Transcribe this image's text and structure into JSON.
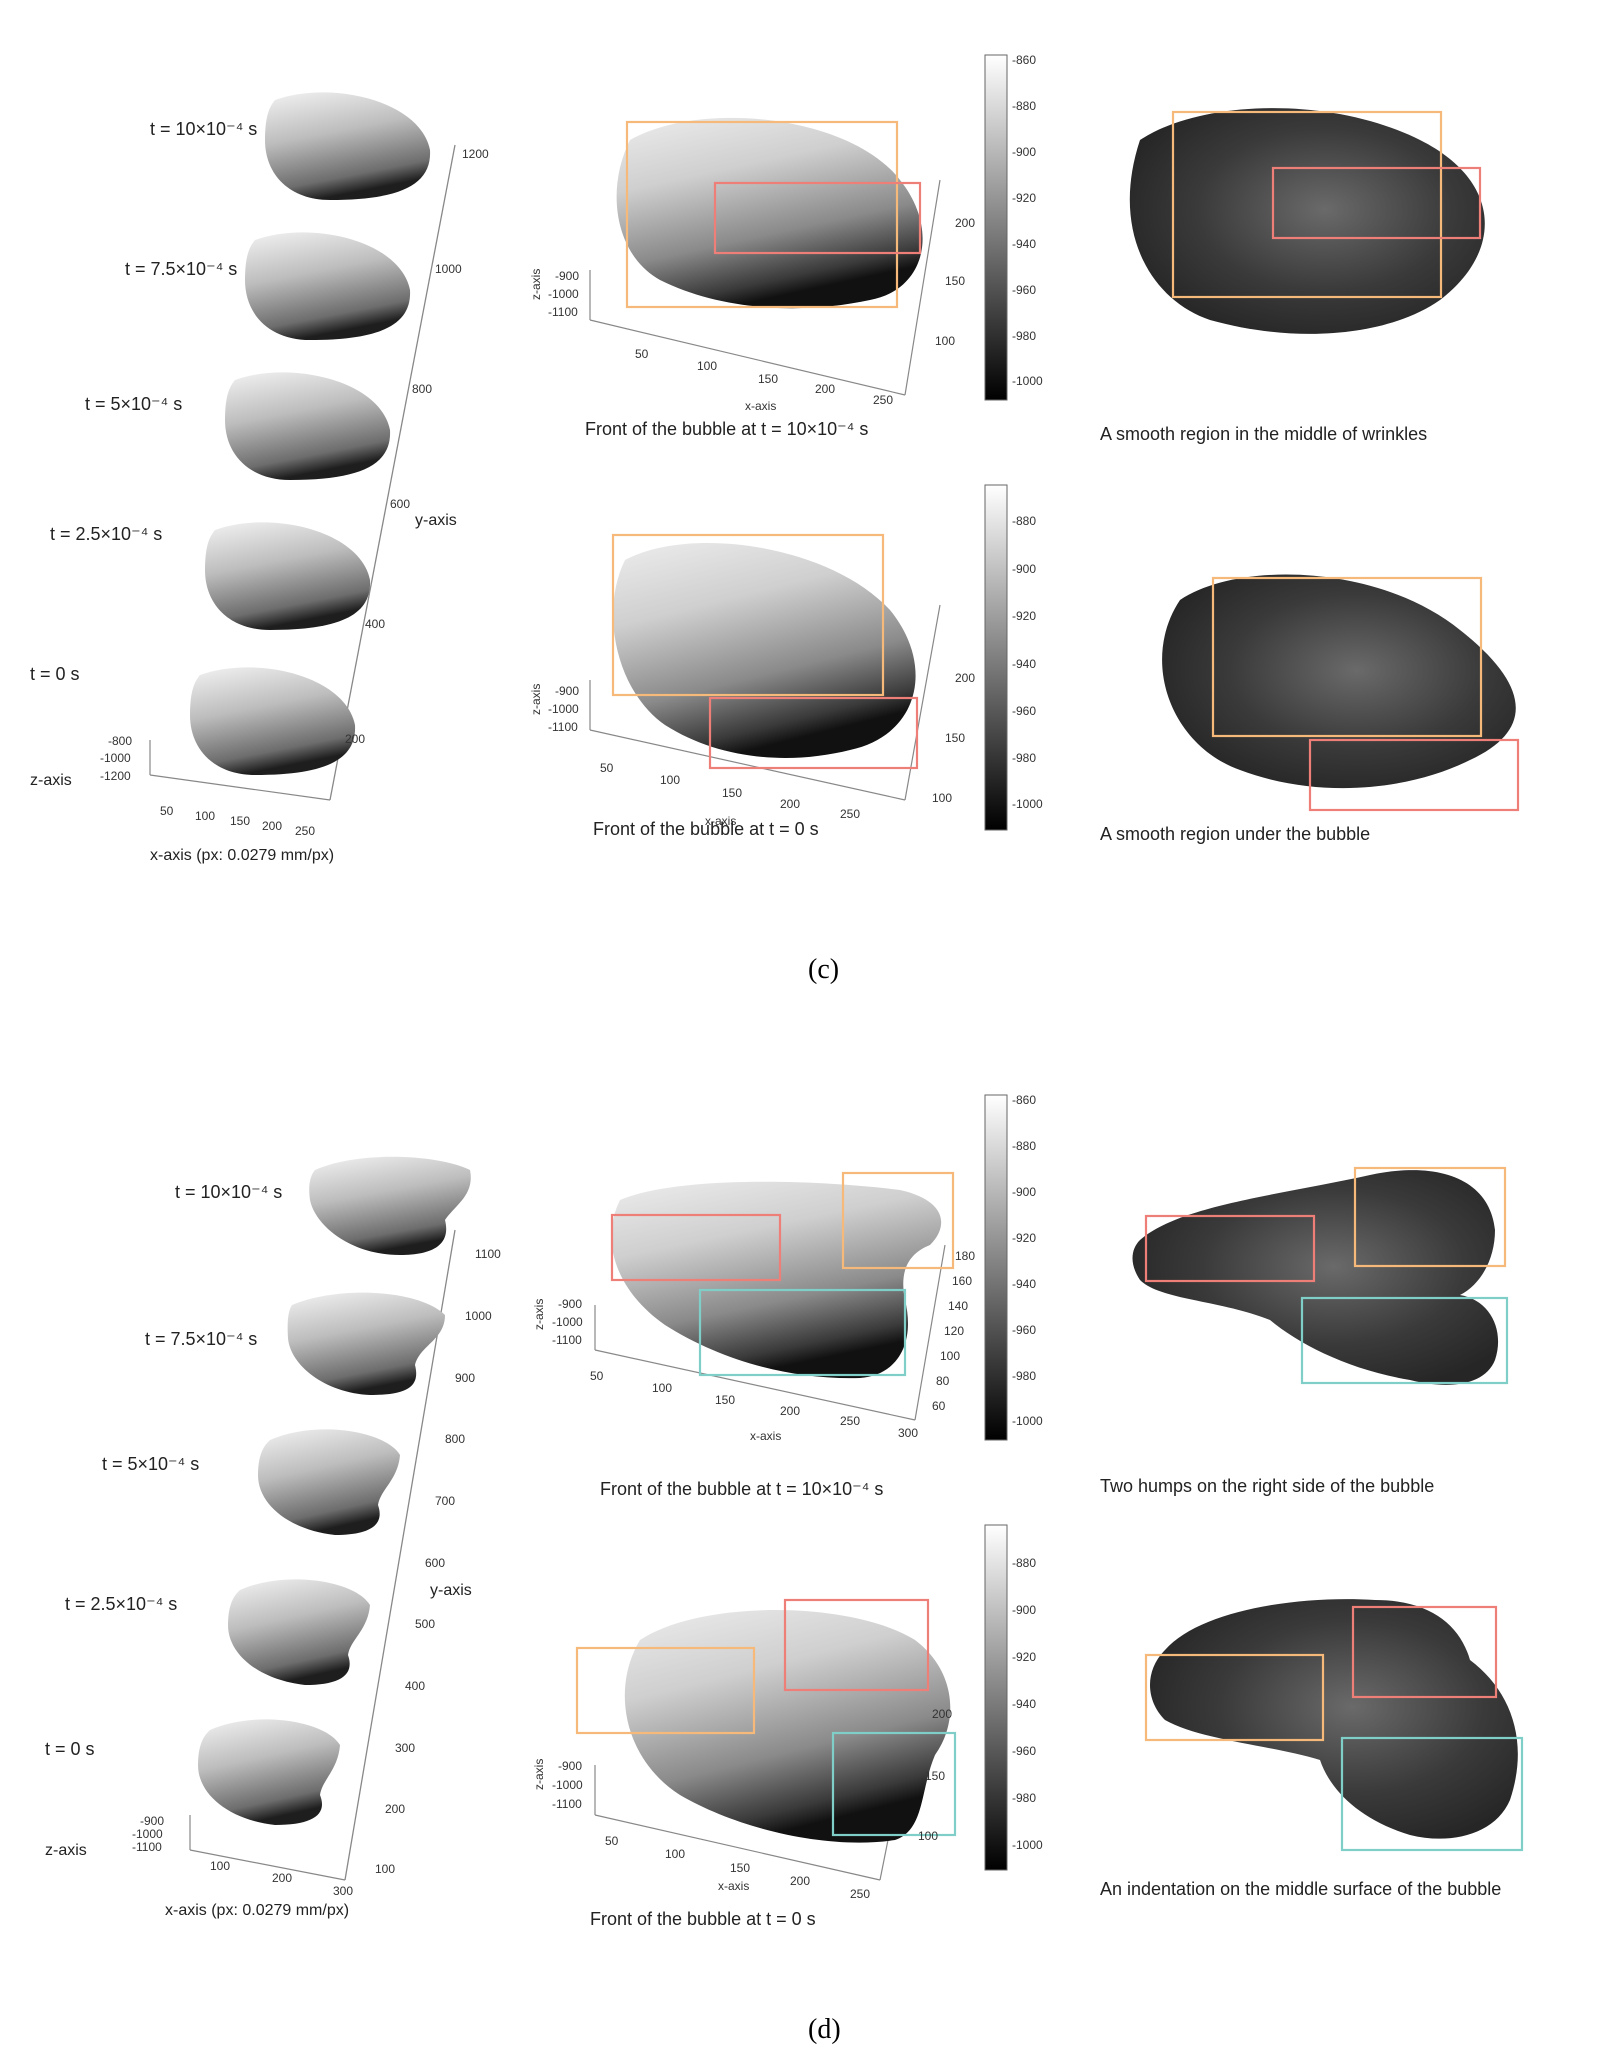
{
  "colors": {
    "orange": "#f6b97a",
    "red": "#ee7f78",
    "teal": "#7fcfc8"
  },
  "c": {
    "panel_label": "(c)",
    "time_labels": [
      "t = 10×10⁻⁴ s",
      "t = 7.5×10⁻⁴ s",
      "t = 5×10⁻⁴ s",
      "t = 2.5×10⁻⁴ s",
      "t = 0 s"
    ],
    "y_ticks": [
      "1200",
      "1000",
      "800",
      "600",
      "400",
      "200"
    ],
    "y_label": "y-axis",
    "z_ticks": [
      "-800",
      "-1000",
      "-1200"
    ],
    "z_label": "z-axis",
    "x_ticks": [
      "50",
      "100",
      "150",
      "200",
      "250"
    ],
    "x_label": "x-axis (px: 0.0279 mm/px)",
    "colorbar_top": [
      "-860",
      "-880",
      "-900",
      "-920",
      "-940",
      "-960",
      "-980",
      "-1000"
    ],
    "colorbar_bottom": [
      "-880",
      "-900",
      "-920",
      "-940",
      "-960",
      "-980",
      "-1000"
    ],
    "front_top": {
      "z_ticks": [
        "-900",
        "-1000",
        "-1100"
      ],
      "x_ticks": [
        "50",
        "100",
        "150",
        "200",
        "250"
      ],
      "y_ticks": [
        "200",
        "150",
        "100"
      ],
      "z_label": "z-axis",
      "x_label": "x-axis",
      "caption": "Front of the bubble at t = 10×10⁻⁴ s"
    },
    "front_bottom": {
      "z_ticks": [
        "-900",
        "-1000",
        "-1100"
      ],
      "x_ticks": [
        "50",
        "100",
        "150",
        "200",
        "250"
      ],
      "y_ticks": [
        "200",
        "150",
        "100"
      ],
      "z_label": "z-axis",
      "x_label": "x-axis",
      "caption": "Front of the bubble at t = 0 s"
    },
    "right_top_caption": "A smooth region in the middle of wrinkles",
    "right_bottom_caption": "A smooth region under the bubble"
  },
  "d": {
    "panel_label": "(d)",
    "time_labels": [
      "t = 10×10⁻⁴ s",
      "t = 7.5×10⁻⁴ s",
      "t = 5×10⁻⁴ s",
      "t = 2.5×10⁻⁴ s",
      "t = 0 s"
    ],
    "y_ticks": [
      "1100",
      "1000",
      "900",
      "800",
      "700",
      "600",
      "500",
      "400",
      "300",
      "200",
      "100"
    ],
    "y_label": "y-axis",
    "z_ticks": [
      "-900",
      "-1000",
      "-1100"
    ],
    "z_label": "z-axis",
    "x_ticks": [
      "100",
      "200",
      "300"
    ],
    "x_label": "x-axis (px: 0.0279 mm/px)",
    "colorbar_top": [
      "-860",
      "-880",
      "-900",
      "-920",
      "-940",
      "-960",
      "-980",
      "-1000"
    ],
    "colorbar_bottom": [
      "-880",
      "-900",
      "-920",
      "-940",
      "-960",
      "-980",
      "-1000"
    ],
    "front_top": {
      "z_ticks": [
        "-900",
        "-1000",
        "-1100"
      ],
      "x_ticks": [
        "50",
        "100",
        "150",
        "200",
        "250",
        "300"
      ],
      "y_ticks": [
        "180",
        "160",
        "140",
        "120",
        "100",
        "80",
        "60"
      ],
      "z_label": "z-axis",
      "x_label": "x-axis",
      "caption": "Front of the bubble at t = 10×10⁻⁴ s"
    },
    "front_bottom": {
      "z_ticks": [
        "-900",
        "-1000",
        "-1100"
      ],
      "x_ticks": [
        "50",
        "100",
        "150",
        "200",
        "250"
      ],
      "y_ticks": [
        "200",
        "150",
        "100"
      ],
      "z_label": "z-axis",
      "x_label": "x-axis",
      "caption": "Front of the bubble at t = 0 s"
    },
    "right_top_caption": "Two humps on the right side of the bubble",
    "right_bottom_caption": "An indentation on the middle surface of the bubble"
  }
}
